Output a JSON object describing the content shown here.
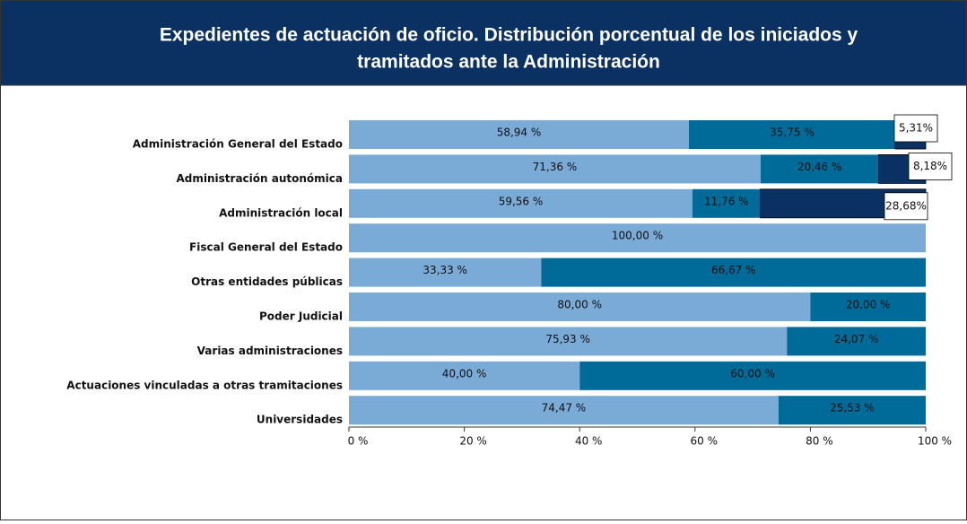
{
  "chart_data": {
    "type": "stacked-barh",
    "title": [
      "Expedientes de actuación de oficio. Distribución porcentual de los iniciados y",
      "tramitados ante la Administración"
    ],
    "categories": [
      "Administración General del Estado",
      "Administración autonómica",
      "Administración local",
      "Fiscal General del Estado",
      "Otras entidades públicas",
      "Poder Judicial",
      "Varias administraciones",
      "Actuaciones vinculadas a otras tramitaciones",
      "Universidades"
    ],
    "series": [
      {
        "color": "#7aaad6",
        "values": [
          58.94,
          71.36,
          59.56,
          100,
          33.33,
          80,
          75.93,
          40,
          74.47
        ],
        "value_labels": [
          "58,94 %",
          "71,36 %",
          "59,56 %",
          "100,00 %",
          "33,33 %",
          "80,00 %",
          "75,93 %",
          "40,00 %",
          "74,47 %"
        ]
      },
      {
        "color": "#006b99",
        "values": [
          35.75,
          20.46,
          11.76,
          null,
          66.67,
          20,
          24.07,
          60,
          25.53
        ],
        "value_labels": [
          "35,75 %",
          "20,46 %",
          "11,76 %",
          null,
          "66,67 %",
          "20,00 %",
          "24,07 %",
          "60,00 %",
          "25,53 %"
        ]
      },
      {
        "color": "#0b3162",
        "values": [
          5.31,
          8.18,
          28.68,
          null,
          null,
          null,
          null,
          null,
          null
        ],
        "value_labels": [
          "5,31%",
          "8,18%",
          "28,68%",
          null,
          null,
          null,
          null,
          null,
          null
        ]
      }
    ],
    "xlim": [
      0,
      100
    ],
    "xticks": [
      {
        "value": 0,
        "label": "0 %"
      },
      {
        "value": 20,
        "label": "20 %"
      },
      {
        "value": 40,
        "label": "40 %"
      },
      {
        "value": 60,
        "label": "60 %"
      },
      {
        "value": 80,
        "label": "80 %"
      },
      {
        "value": 100,
        "label": "100 %"
      }
    ]
  }
}
